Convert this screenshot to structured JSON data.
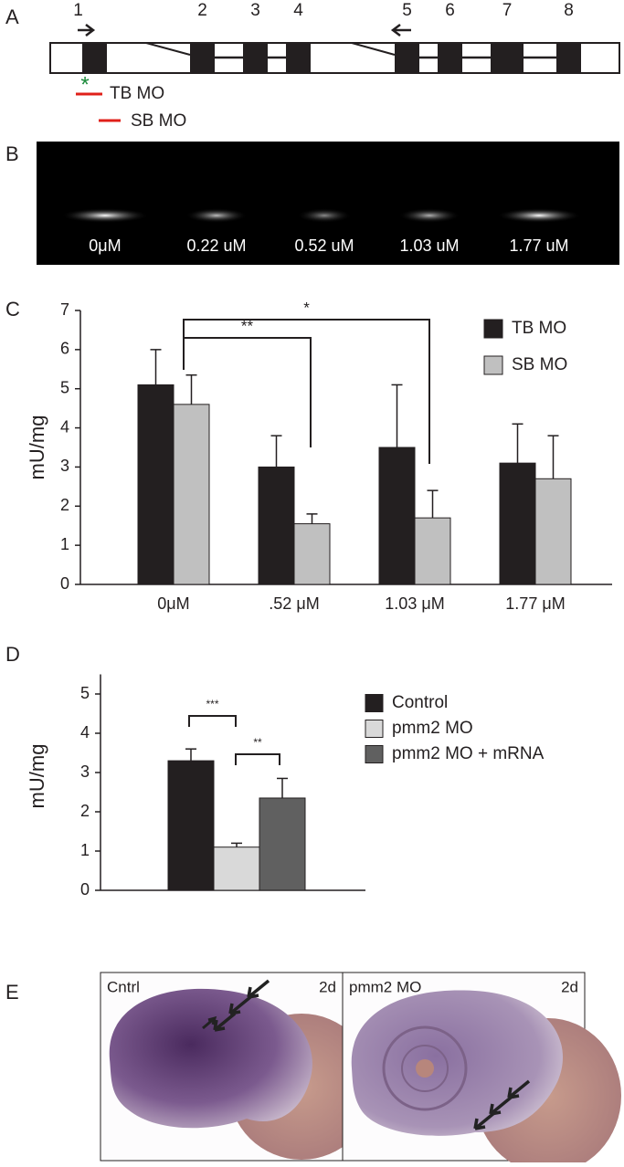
{
  "panel_a": {
    "label": "A",
    "exons": [
      "1",
      "2",
      "3",
      "4",
      "5",
      "6",
      "7",
      "8"
    ],
    "marker": "*",
    "morpholinos": [
      "TB MO",
      "SB MO"
    ]
  },
  "panel_b": {
    "label": "B",
    "lanes": [
      "0μM",
      "0.22 uM",
      "0.52 uM",
      "1.03 uM",
      "1.77 uM"
    ]
  },
  "chart_data": [
    {
      "type": "bar",
      "panel_label": "C",
      "y_label": "mU/mg",
      "categories": [
        "0μM",
        ".52 μM",
        "1.03 μM",
        "1.77 μM"
      ],
      "series": [
        {
          "name": "TB MO",
          "color": "#231f20",
          "values": [
            5.1,
            3.0,
            3.5,
            3.1
          ],
          "errors": [
            0.9,
            0.8,
            1.6,
            1.0
          ]
        },
        {
          "name": "SB MO",
          "color": "#c0c0c0",
          "values": [
            4.6,
            1.55,
            1.7,
            2.7
          ],
          "errors": [
            0.75,
            0.25,
            0.7,
            1.1
          ]
        }
      ],
      "ylim": [
        0,
        7
      ],
      "yticks": [
        0,
        1,
        2,
        3,
        4,
        5,
        6,
        7
      ],
      "annotations": [
        "**",
        "*"
      ]
    },
    {
      "type": "bar",
      "panel_label": "D",
      "y_label": "mU/mg",
      "categories": [
        null
      ],
      "series": [
        {
          "name": "Control",
          "color": "#231f20",
          "values": [
            3.3
          ],
          "errors": [
            0.3
          ]
        },
        {
          "name": "pmm2 MO",
          "color": "#d9d9d9",
          "values": [
            1.1
          ],
          "errors": [
            0.1
          ]
        },
        {
          "name": "pmm2 MO + mRNA",
          "color": "#606060",
          "values": [
            2.35
          ],
          "errors": [
            0.5
          ]
        }
      ],
      "ylim": [
        0,
        5.5
      ],
      "yticks": [
        0,
        1,
        2,
        3,
        4,
        5
      ],
      "annotations": [
        "***",
        "**"
      ]
    }
  ],
  "panel_e": {
    "label": "E",
    "images": [
      {
        "label": "Cntrl",
        "stage": "2d"
      },
      {
        "label": "pmm2 MO",
        "stage": "2d"
      }
    ]
  }
}
